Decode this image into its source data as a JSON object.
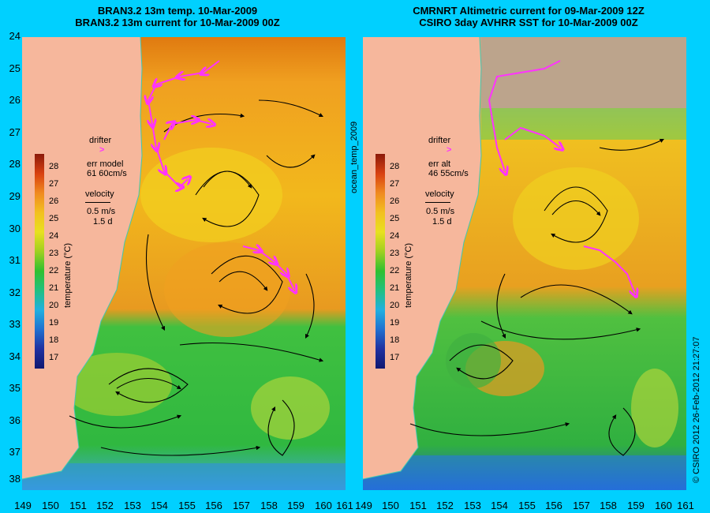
{
  "left_panel": {
    "title_line1": "BRAN3.2 13m temp. 10-Mar-2009",
    "title_line2": "BRAN3.2 13m current for 10-Mar-2009 00Z",
    "drifter_label": "drifter",
    "err_label": "err model",
    "err_value": "61 60cm/s",
    "velocity_label": "velocity",
    "velocity_scale": "0.5 m/s",
    "velocity_time": "1.5 d",
    "colorbar_title": "temperature (°C)"
  },
  "right_panel": {
    "title_line1": "CMRNRT Altimetric current for 09-Mar-2009 12Z",
    "title_line2": "CSIRO 3day AVHRR SST for 10-Mar-2009 00Z",
    "drifter_label": "drifter",
    "err_label": "err alt",
    "err_value": "46 55cm/s",
    "velocity_label": "velocity",
    "velocity_scale": "0.5 m/s",
    "velocity_time": "1.5 d",
    "colorbar_title": "temperature (°C)"
  },
  "center_vertical_label": "ocean_temp_2009",
  "right_vertical_label": "© CSIRO 2012   26-Feb-2012 21:27:07",
  "latitude_ticks": [
    "24",
    "25",
    "26",
    "27",
    "28",
    "29",
    "30",
    "31",
    "32",
    "33",
    "34",
    "35",
    "36",
    "37",
    "38"
  ],
  "longitude_ticks": [
    "149",
    "150",
    "151",
    "152",
    "153",
    "154",
    "155",
    "156",
    "157",
    "158",
    "159",
    "160",
    "161"
  ],
  "colorbar_ticks": [
    "28",
    "27",
    "26",
    "25",
    "24",
    "23",
    "22",
    "21",
    "20",
    "19",
    "18",
    "17"
  ],
  "colors": {
    "background": "#00d0ff",
    "land": "#f6b79c",
    "drifter": "#ff33ff",
    "cloud": "#bca48c"
  }
}
